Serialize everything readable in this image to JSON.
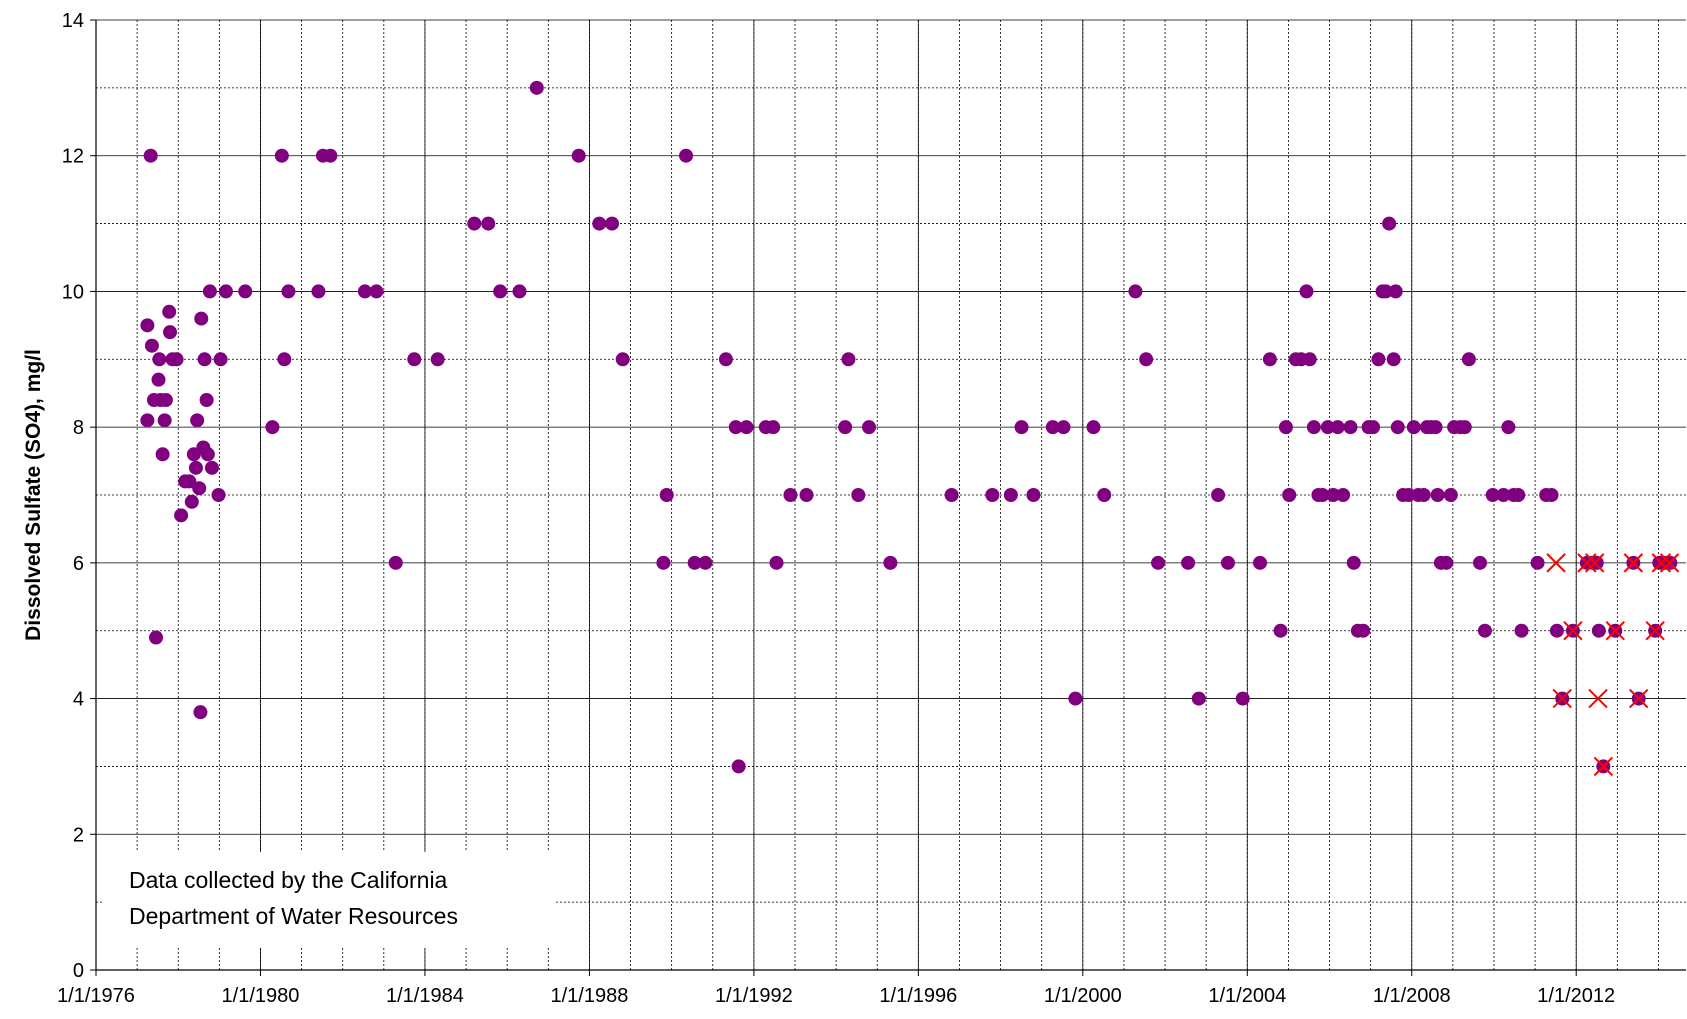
{
  "chart_data": {
    "type": "scatter",
    "ylabel": "Dissolved Sulfate (SO4), mg/l",
    "annotation": [
      "Data collected by the California",
      "Department of Water Resources"
    ],
    "xlim": [
      1976,
      2014.67
    ],
    "ylim": [
      0,
      14
    ],
    "xticks": [
      {
        "value": 1976,
        "label": "1/1/1976"
      },
      {
        "value": 1980,
        "label": "1/1/1980"
      },
      {
        "value": 1984,
        "label": "1/1/1984"
      },
      {
        "value": 1988,
        "label": "1/1/1988"
      },
      {
        "value": 1992,
        "label": "1/1/1992"
      },
      {
        "value": 1996,
        "label": "1/1/1996"
      },
      {
        "value": 2000,
        "label": "1/1/2000"
      },
      {
        "value": 2004,
        "label": "1/1/2004"
      },
      {
        "value": 2008,
        "label": "1/1/2008"
      },
      {
        "value": 2012,
        "label": "1/1/2012"
      }
    ],
    "yticks": [
      0,
      2,
      4,
      6,
      8,
      10,
      12,
      14
    ],
    "xgrid": [
      1977,
      1978,
      1979,
      1980,
      1981,
      1982,
      1983,
      1984,
      1985,
      1986,
      1987,
      1988,
      1989,
      1990,
      1991,
      1992,
      1993,
      1994,
      1995,
      1996,
      1997,
      1998,
      1999,
      2000,
      2001,
      2002,
      2003,
      2004,
      2005,
      2006,
      2007,
      2008,
      2009,
      2010,
      2011,
      2012,
      2013,
      2014
    ],
    "ygrid": [
      1,
      3,
      5,
      7,
      9,
      11,
      13
    ],
    "grid": true,
    "series": [
      {
        "color": "#800080",
        "marker": "dot",
        "x": [
          1977.25,
          1977.25,
          1977.33,
          1977.36,
          1977.41,
          1977.46,
          1977.52,
          1977.54,
          1977.57,
          1977.62,
          1977.67,
          1977.7,
          1977.78,
          1977.8,
          1977.86,
          1977.96,
          1978.07,
          1978.17,
          1978.27,
          1978.33,
          1978.38,
          1978.43,
          1978.46,
          1978.51,
          1978.54,
          1978.56,
          1978.61,
          1978.64,
          1978.69,
          1978.72,
          1978.77,
          1978.82,
          1978.98,
          1979.03,
          1979.16,
          1979.63,
          1980.29,
          1980.52,
          1980.58,
          1980.68,
          1981.41,
          1981.52,
          1981.7,
          1982.54,
          1982.82,
          1983.29,
          1983.74,
          1984.31,
          1985.2,
          1985.54,
          1985.83,
          1986.3,
          1986.72,
          1987.74,
          1988.24,
          1988.55,
          1988.81,
          1989.8,
          1989.88,
          1990.35,
          1990.56,
          1990.82,
          1991.32,
          1991.56,
          1991.63,
          1991.82,
          1992.29,
          1992.47,
          1992.55,
          1992.89,
          1993.28,
          1994.22,
          1994.3,
          1994.54,
          1994.8,
          1995.32,
          1996.81,
          1997.8,
          1998.25,
          1998.51,
          1998.8,
          1999.27,
          1999.53,
          1999.82,
          2000.26,
          2000.52,
          2001.28,
          2001.54,
          2001.83,
          2002.56,
          2002.82,
          2003.29,
          2003.53,
          2003.89,
          2004.31,
          2004.55,
          2004.81,
          2004.94,
          2005.02,
          2005.18,
          2005.31,
          2005.44,
          2005.52,
          2005.62,
          2005.73,
          2005.83,
          2005.96,
          2006.09,
          2006.2,
          2006.33,
          2006.51,
          2006.59,
          2006.69,
          2006.82,
          2006.95,
          2007.06,
          2007.19,
          2007.29,
          2007.37,
          2007.45,
          2007.56,
          2007.61,
          2007.66,
          2007.79,
          2007.92,
          2008.05,
          2008.16,
          2008.29,
          2008.37,
          2008.47,
          2008.58,
          2008.63,
          2008.71,
          2008.84,
          2008.95,
          2009.03,
          2009.18,
          2009.29,
          2009.39,
          2009.66,
          2009.78,
          2009.97,
          2010.23,
          2010.35,
          2010.48,
          2010.59,
          2010.67,
          2011.06,
          2011.27,
          2011.4,
          2011.53,
          2011.66,
          2011.92,
          2012.26,
          2012.39,
          2012.5,
          2012.55,
          2012.66,
          2012.95,
          2013.39,
          2013.52,
          2013.92,
          2014.02,
          2014.17,
          2014.29
        ],
        "values": [
          9.5,
          8.1,
          12,
          9.2,
          8.4,
          4.9,
          8.7,
          9,
          8.4,
          7.6,
          8.1,
          8.4,
          9.7,
          9.4,
          9,
          9,
          6.7,
          7.2,
          7.2,
          6.9,
          7.6,
          7.4,
          8.1,
          7.1,
          3.8,
          9.6,
          7.7,
          9,
          8.4,
          7.6,
          10,
          7.4,
          7,
          9,
          10,
          10,
          8,
          12,
          9,
          10,
          10,
          12,
          12,
          10,
          10,
          6,
          9,
          9,
          11,
          11,
          10,
          10,
          13,
          12,
          11,
          11,
          9,
          6,
          7,
          12,
          6,
          6,
          9,
          8,
          3,
          8,
          8,
          8,
          6,
          7,
          7,
          8,
          9,
          7,
          8,
          6,
          7,
          7,
          7,
          8,
          7,
          8,
          8,
          4,
          8,
          7,
          10,
          9,
          6,
          6,
          4,
          7,
          6,
          4,
          6,
          9,
          5,
          8,
          7,
          9,
          9,
          10,
          9,
          8,
          7,
          7,
          8,
          7,
          8,
          7,
          8,
          6,
          5,
          5,
          8,
          8,
          9,
          10,
          10,
          11,
          9,
          10,
          8,
          7,
          7,
          8,
          7,
          7,
          8,
          8,
          8,
          7,
          6,
          6,
          7,
          8,
          8,
          8,
          9,
          6,
          5,
          7,
          7,
          8,
          7,
          7,
          5,
          6,
          7,
          7,
          5,
          4,
          5,
          6,
          6,
          6,
          5,
          3,
          5,
          6,
          4,
          5,
          6,
          6,
          6
        ]
      },
      {
        "color": "#ff0000",
        "marker": "x",
        "x": [
          2011.51,
          2011.66,
          2011.92,
          2012.26,
          2012.45,
          2012.53,
          2012.66,
          2012.95,
          2013.39,
          2013.52,
          2013.92,
          2014.07,
          2014.27
        ],
        "values": [
          6,
          4,
          5,
          6,
          6,
          4,
          3,
          5,
          6,
          4,
          5,
          6,
          6
        ]
      }
    ]
  }
}
